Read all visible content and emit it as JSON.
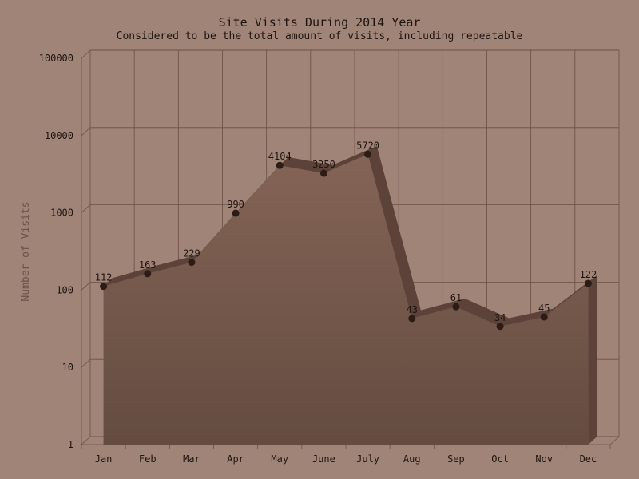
{
  "chart_data": {
    "type": "area",
    "title": "Site Visits During 2014 Year",
    "subtitle": "Considered to be the total amount of visits, including repeatable",
    "ylabel": "Number of Visits",
    "xlabel": "",
    "categories": [
      "Jan",
      "Feb",
      "Mar",
      "Apr",
      "May",
      "June",
      "July",
      "Aug",
      "Sep",
      "Oct",
      "Nov",
      "Dec"
    ],
    "values": [
      112,
      163,
      229,
      990,
      4104,
      3250,
      5720,
      43,
      61,
      34,
      45,
      122
    ],
    "y_scale": "log",
    "ylim": [
      1,
      100000
    ],
    "y_ticks": [
      "1",
      "10",
      "100",
      "1000",
      "10000",
      "100000"
    ],
    "grid": true,
    "legend": "none",
    "colors": {
      "background": "#a08478",
      "area_top": "#846456",
      "area_bottom": "#644c40",
      "ridge": "#5c4238",
      "marker": "#2c1c16",
      "grid": "#6e4e44"
    }
  }
}
